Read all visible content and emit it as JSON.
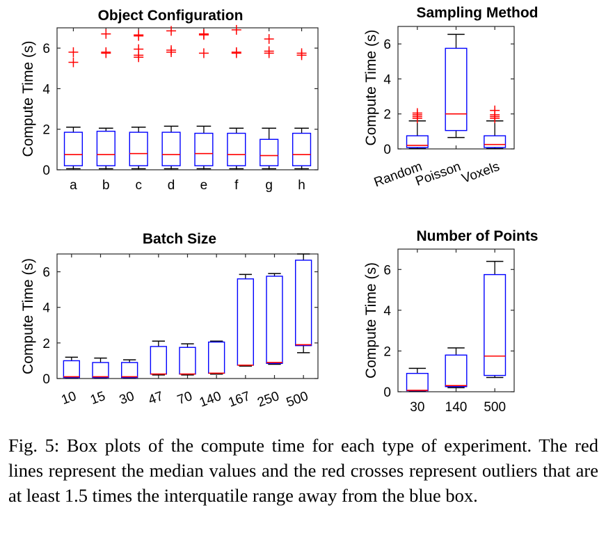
{
  "chart_data": [
    {
      "type": "box",
      "title": "Object Configuration",
      "ylabel": "Compute Time (s)",
      "xlabel": "",
      "ylim": [
        0,
        7
      ],
      "yticks": [
        0,
        2,
        4,
        6
      ],
      "categories": [
        "a",
        "b",
        "c",
        "d",
        "e",
        "f",
        "g",
        "h"
      ],
      "boxes": [
        {
          "whisker_low": 0.05,
          "q1": 0.2,
          "median": 0.75,
          "q3": 1.85,
          "whisker_high": 2.1,
          "outliers": [
            5.3,
            5.8
          ]
        },
        {
          "whisker_low": 0.05,
          "q1": 0.2,
          "median": 0.75,
          "q3": 1.9,
          "whisker_high": 2.05,
          "outliers": [
            5.75,
            5.8,
            6.7
          ]
        },
        {
          "whisker_low": 0.05,
          "q1": 0.2,
          "median": 0.8,
          "q3": 1.85,
          "whisker_high": 2.1,
          "outliers": [
            5.55,
            5.65,
            5.95,
            6.6,
            6.65
          ]
        },
        {
          "whisker_low": 0.05,
          "q1": 0.2,
          "median": 0.75,
          "q3": 1.85,
          "whisker_high": 2.15,
          "outliers": [
            5.8,
            5.9,
            6.85
          ]
        },
        {
          "whisker_low": 0.05,
          "q1": 0.2,
          "median": 0.8,
          "q3": 1.8,
          "whisker_high": 2.15,
          "outliers": [
            5.75,
            6.65,
            6.7
          ]
        },
        {
          "whisker_low": 0.05,
          "q1": 0.2,
          "median": 0.75,
          "q3": 1.8,
          "whisker_high": 2.05,
          "outliers": [
            5.75,
            5.8,
            6.9
          ]
        },
        {
          "whisker_low": 0.05,
          "q1": 0.2,
          "median": 0.7,
          "q3": 1.5,
          "whisker_high": 2.05,
          "outliers": [
            5.75,
            5.85,
            6.45
          ]
        },
        {
          "whisker_low": 0.05,
          "q1": 0.2,
          "median": 0.75,
          "q3": 1.8,
          "whisker_high": 2.05,
          "outliers": [
            5.65,
            5.75
          ]
        }
      ]
    },
    {
      "type": "box",
      "title": "Sampling Method",
      "ylabel": "Compute Time (s)",
      "xlabel": "",
      "ylim": [
        0,
        7
      ],
      "yticks": [
        0,
        2,
        4,
        6
      ],
      "categories": [
        "Random",
        "Poisson",
        "Voxels"
      ],
      "rotated_ticks": true,
      "boxes": [
        {
          "whisker_low": 0.02,
          "q1": 0.08,
          "median": 0.2,
          "q3": 0.75,
          "whisker_high": 1.6,
          "outliers": [
            1.75,
            1.85,
            1.95,
            2.05
          ]
        },
        {
          "whisker_low": 0.65,
          "q1": 1.05,
          "median": 2.0,
          "q3": 5.75,
          "whisker_high": 6.55,
          "outliers": []
        },
        {
          "whisker_low": 0.02,
          "q1": 0.08,
          "median": 0.25,
          "q3": 0.75,
          "whisker_high": 1.6,
          "outliers": [
            1.75,
            1.85,
            1.95,
            2.2
          ]
        }
      ]
    },
    {
      "type": "box",
      "title": "Batch Size",
      "ylabel": "Compute Time (s)",
      "xlabel": "",
      "ylim": [
        0,
        7
      ],
      "yticks": [
        0,
        2,
        4,
        6
      ],
      "categories": [
        "10",
        "15",
        "30",
        "47",
        "70",
        "140",
        "167",
        "250",
        "500"
      ],
      "rotated_ticks": true,
      "boxes": [
        {
          "whisker_low": 0.02,
          "q1": 0.05,
          "median": 0.1,
          "q3": 1.0,
          "whisker_high": 1.2,
          "outliers": []
        },
        {
          "whisker_low": 0.02,
          "q1": 0.05,
          "median": 0.1,
          "q3": 0.9,
          "whisker_high": 1.15,
          "outliers": []
        },
        {
          "whisker_low": 0.02,
          "q1": 0.05,
          "median": 0.1,
          "q3": 0.9,
          "whisker_high": 1.05,
          "outliers": []
        },
        {
          "whisker_low": 0.2,
          "q1": 0.25,
          "median": 0.25,
          "q3": 1.8,
          "whisker_high": 2.1,
          "outliers": []
        },
        {
          "whisker_low": 0.2,
          "q1": 0.25,
          "median": 0.25,
          "q3": 1.75,
          "whisker_high": 1.95,
          "outliers": []
        },
        {
          "whisker_low": 0.25,
          "q1": 0.3,
          "median": 0.3,
          "q3": 2.05,
          "whisker_high": 2.1,
          "outliers": []
        },
        {
          "whisker_low": 0.7,
          "q1": 0.75,
          "median": 0.75,
          "q3": 5.6,
          "whisker_high": 5.85,
          "outliers": []
        },
        {
          "whisker_low": 0.8,
          "q1": 0.85,
          "median": 0.9,
          "q3": 5.75,
          "whisker_high": 5.9,
          "outliers": []
        },
        {
          "whisker_low": 1.45,
          "q1": 1.85,
          "median": 1.9,
          "q3": 6.65,
          "whisker_high": 7.0,
          "outliers": []
        }
      ]
    },
    {
      "type": "box",
      "title": "Number of Points",
      "ylabel": "Compute Time (s)",
      "xlabel": "",
      "ylim": [
        0,
        7
      ],
      "yticks": [
        0,
        2,
        4,
        6
      ],
      "categories": [
        "30",
        "140",
        "500"
      ],
      "boxes": [
        {
          "whisker_low": 0.02,
          "q1": 0.05,
          "median": 0.07,
          "q3": 0.9,
          "whisker_high": 1.15,
          "outliers": []
        },
        {
          "whisker_low": 0.2,
          "q1": 0.25,
          "median": 0.3,
          "q3": 1.8,
          "whisker_high": 2.15,
          "outliers": []
        },
        {
          "whisker_low": 0.7,
          "q1": 0.8,
          "median": 1.75,
          "q3": 5.75,
          "whisker_high": 6.4,
          "outliers": []
        }
      ]
    }
  ],
  "caption": "Fig. 5: Box plots of the compute time for each type of experiment. The red lines represent the median values and the red crosses represent outliers that are at least 1.5 times the interquatile range away from the blue box.",
  "colors": {
    "box": "#0000ff",
    "median": "#ff0000",
    "outlier": "#ff0000",
    "whisker": "#000000",
    "axis": "#262626"
  }
}
